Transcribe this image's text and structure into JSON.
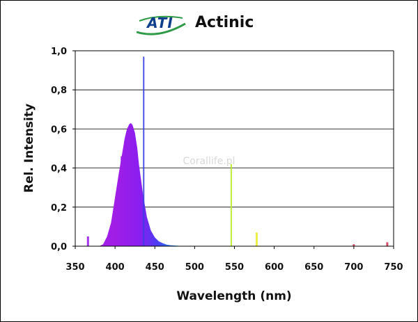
{
  "colors": {
    "logo_green": "#2e9a46",
    "logo_blue": "#0f3f8c",
    "grid": "#000000",
    "axis": "#000000",
    "violet": "#9a1ee6",
    "peak_blue": "#3a3fe0",
    "green_line": "#b8ee22",
    "yellow_line": "#e9ee37",
    "red_line": "#d23a5a"
  },
  "logo": {
    "text": "ATI",
    "icon": "ati-swoosh-logo"
  },
  "watermark": "Corallife.pl",
  "chart_data": {
    "type": "area",
    "title": "Actinic",
    "xlabel": "Wavelength (nm)",
    "ylabel": "Rel. Intensity",
    "xlim": [
      350,
      750
    ],
    "ylim": [
      0.0,
      1.0
    ],
    "x_ticks": [
      "350",
      "400",
      "450",
      "500",
      "550",
      "600",
      "650",
      "700",
      "750"
    ],
    "y_ticks": [
      "0,0",
      "0,2",
      "0,4",
      "0,6",
      "0,8",
      "1,0"
    ],
    "x_tick_values": [
      350,
      400,
      450,
      500,
      550,
      600,
      650,
      700,
      750
    ],
    "y_tick_values": [
      0.0,
      0.2,
      0.4,
      0.6,
      0.8,
      1.0
    ],
    "grid": "horizontal",
    "legend": "none",
    "series": [
      {
        "x": [
          380,
          385,
          390,
          395,
          400,
          405,
          410,
          412,
          415,
          418,
          420,
          422,
          425,
          428,
          430,
          433,
          435,
          437,
          440,
          445,
          450,
          455,
          460,
          465,
          470,
          480,
          490
        ],
        "y": [
          0.0,
          0.01,
          0.05,
          0.12,
          0.25,
          0.38,
          0.5,
          0.55,
          0.6,
          0.625,
          0.63,
          0.62,
          0.58,
          0.5,
          0.42,
          0.33,
          0.27,
          0.22,
          0.15,
          0.08,
          0.045,
          0.025,
          0.015,
          0.008,
          0.005,
          0.002,
          0.0
        ]
      }
    ],
    "lines": [
      {
        "x": 366,
        "y": 0.05
      },
      {
        "x": 408,
        "y": 0.46
      },
      {
        "x": 436,
        "y": 0.97
      },
      {
        "x": 546,
        "y": 0.42
      },
      {
        "x": 578,
        "y": 0.07
      },
      {
        "x": 700,
        "y": 0.01
      },
      {
        "x": 742,
        "y": 0.02
      }
    ]
  }
}
